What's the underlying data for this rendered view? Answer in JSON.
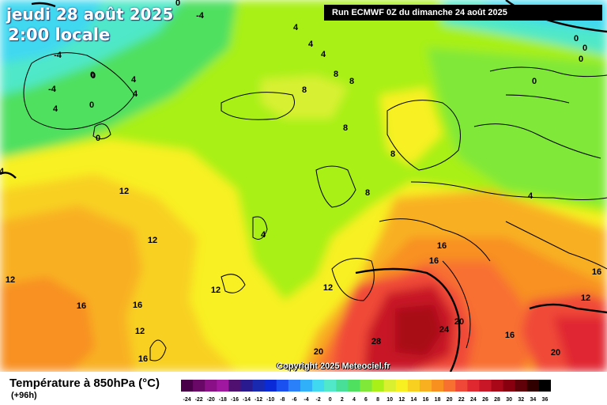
{
  "header": {
    "date_title": "jeudi 28 août 2025",
    "local_time": "2:00 locale",
    "run_info": "Run ECMWF 0Z du dimanche 24 août 2025"
  },
  "footer": {
    "variable_title": "Température à 850hPa (°C)",
    "lead_time": "(+96h)",
    "copyright": "Copyright 2025 Meteociel.fr"
  },
  "scale": {
    "ticks": [
      "-24",
      "-22",
      "-20",
      "-18",
      "-16",
      "-14",
      "-12",
      "-10",
      "-8",
      "-6",
      "-4",
      "-2",
      "0",
      "2",
      "4",
      "6",
      "8",
      "10",
      "12",
      "14",
      "16",
      "18",
      "20",
      "22",
      "24",
      "26",
      "28",
      "30",
      "32",
      "34",
      "36"
    ],
    "colors": [
      "#4a0048",
      "#6a0868",
      "#8a1088",
      "#a018a0",
      "#501070",
      "#2a1a90",
      "#1a2ab0",
      "#0a2ad8",
      "#1a50f0",
      "#2a80f8",
      "#30b0f8",
      "#40d8f0",
      "#50e8c8",
      "#48e098",
      "#50e060",
      "#80e838",
      "#a8f018",
      "#d8f030",
      "#f8f020",
      "#f8d020",
      "#f8b020",
      "#f89020",
      "#f87030",
      "#f04838",
      "#e02830",
      "#c81828",
      "#a80818",
      "#880010",
      "#600008",
      "#300000",
      "#000000"
    ]
  },
  "map_labels": [
    {
      "text": "0"
    },
    {
      "text": "-4"
    },
    {
      "text": "-4"
    },
    {
      "text": "0"
    },
    {
      "text": "-4"
    },
    {
      "text": "4"
    },
    {
      "text": "0"
    },
    {
      "text": "4"
    },
    {
      "text": "0"
    },
    {
      "text": "4"
    },
    {
      "text": "4"
    },
    {
      "text": "4"
    },
    {
      "text": "0"
    },
    {
      "text": "4"
    },
    {
      "text": "4"
    },
    {
      "text": "8"
    },
    {
      "text": "8"
    },
    {
      "text": "8"
    },
    {
      "text": "8"
    },
    {
      "text": "8"
    },
    {
      "text": "0"
    },
    {
      "text": "0"
    },
    {
      "text": "0"
    },
    {
      "text": "0"
    },
    {
      "text": "0"
    },
    {
      "text": "12"
    },
    {
      "text": "12"
    },
    {
      "text": "12"
    },
    {
      "text": "16"
    },
    {
      "text": "16"
    },
    {
      "text": "12"
    },
    {
      "text": "16"
    },
    {
      "text": "4"
    },
    {
      "text": "8"
    },
    {
      "text": "12"
    },
    {
      "text": "16"
    },
    {
      "text": "16"
    },
    {
      "text": "20"
    },
    {
      "text": "24"
    },
    {
      "text": "28"
    },
    {
      "text": "20"
    },
    {
      "text": "16"
    },
    {
      "text": "20"
    },
    {
      "text": "12"
    },
    {
      "text": "16"
    },
    {
      "text": "4"
    },
    {
      "text": "12"
    }
  ]
}
